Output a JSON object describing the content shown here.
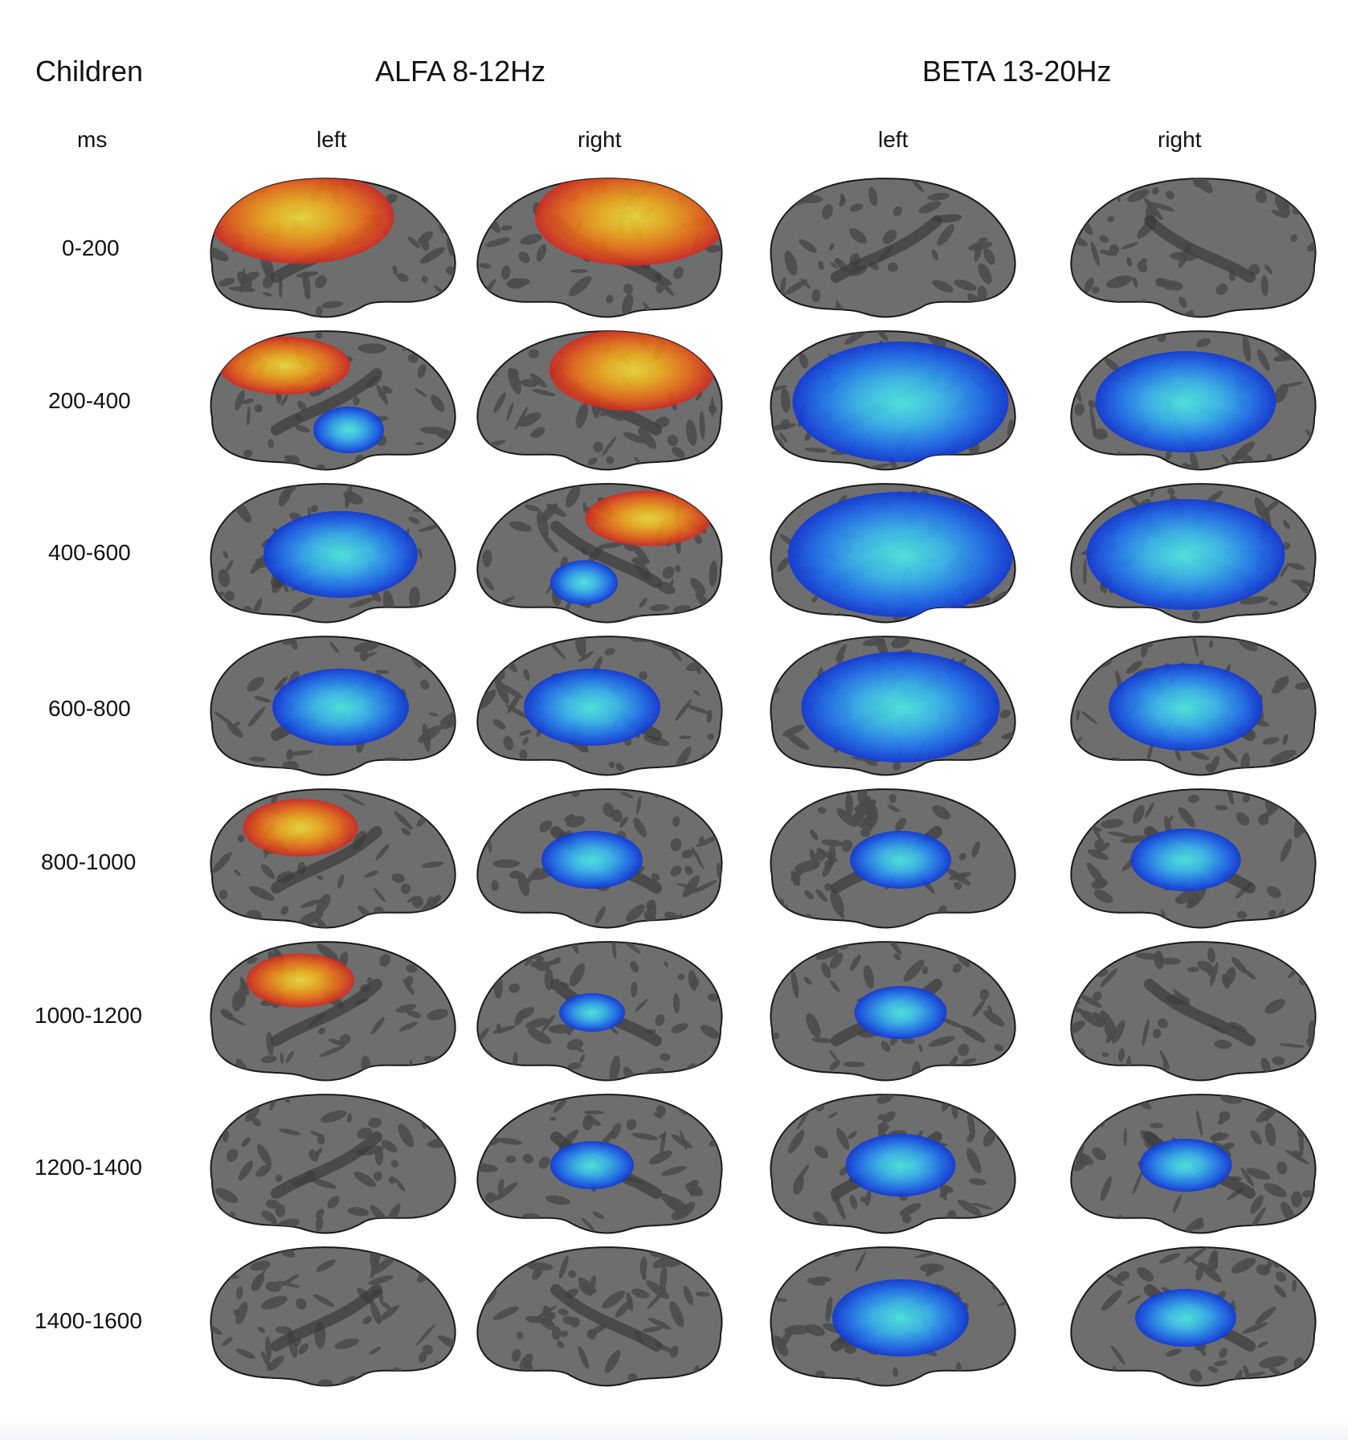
{
  "header": {
    "group_label": "Children",
    "units_label": "ms",
    "bands": [
      {
        "label": "ALFA 8-12Hz",
        "hemispheres": [
          "left",
          "right"
        ]
      },
      {
        "label": "BETA 13-20Hz",
        "hemispheres": [
          "left",
          "right"
        ]
      }
    ]
  },
  "time_windows": [
    "0-200",
    "200-400",
    "400-600",
    "600-800",
    "800-1000",
    "1000-1200",
    "1200-1400",
    "1400-1600"
  ],
  "colors": {
    "brain_base": "#6e6e6e",
    "sulci": "#4a4a4a",
    "activation_warm": [
      "#d7261e",
      "#f06a15",
      "#f6b21a",
      "#f7e53a"
    ],
    "activation_cool": [
      "#1038d8",
      "#1e6ef0",
      "#38b8f0",
      "#50f0e6"
    ]
  },
  "activation_maps": [
    [
      {
        "type": "warm",
        "level": 0.85
      },
      {
        "type": "warm",
        "level": 0.9
      },
      {
        "type": "none",
        "level": 0
      },
      {
        "type": "none",
        "level": 0
      }
    ],
    [
      {
        "type": "mixed",
        "level": 0.6
      },
      {
        "type": "warm",
        "level": 0.7
      },
      {
        "type": "cool",
        "level": 0.95
      },
      {
        "type": "cool",
        "level": 0.75
      }
    ],
    [
      {
        "type": "cool",
        "level": 0.6
      },
      {
        "type": "mixed",
        "level": 0.55
      },
      {
        "type": "cool",
        "level": 1.0
      },
      {
        "type": "cool",
        "level": 0.85
      }
    ],
    [
      {
        "type": "cool",
        "level": 0.5
      },
      {
        "type": "cool",
        "level": 0.5
      },
      {
        "type": "cool",
        "level": 0.85
      },
      {
        "type": "cool",
        "level": 0.6
      }
    ],
    [
      {
        "type": "warm",
        "level": 0.35
      },
      {
        "type": "cool",
        "level": 0.3
      },
      {
        "type": "cool",
        "level": 0.3
      },
      {
        "type": "cool",
        "level": 0.35
      }
    ],
    [
      {
        "type": "warm",
        "level": 0.3
      },
      {
        "type": "cool",
        "level": 0.1
      },
      {
        "type": "cool",
        "level": 0.25
      },
      {
        "type": "none",
        "level": 0
      }
    ],
    [
      {
        "type": "none",
        "level": 0
      },
      {
        "type": "cool",
        "level": 0.2
      },
      {
        "type": "cool",
        "level": 0.35
      },
      {
        "type": "cool",
        "level": 0.25
      }
    ],
    [
      {
        "type": "none",
        "level": 0
      },
      {
        "type": "none",
        "level": 0
      },
      {
        "type": "cool",
        "level": 0.5
      },
      {
        "type": "cool",
        "level": 0.3
      }
    ]
  ]
}
